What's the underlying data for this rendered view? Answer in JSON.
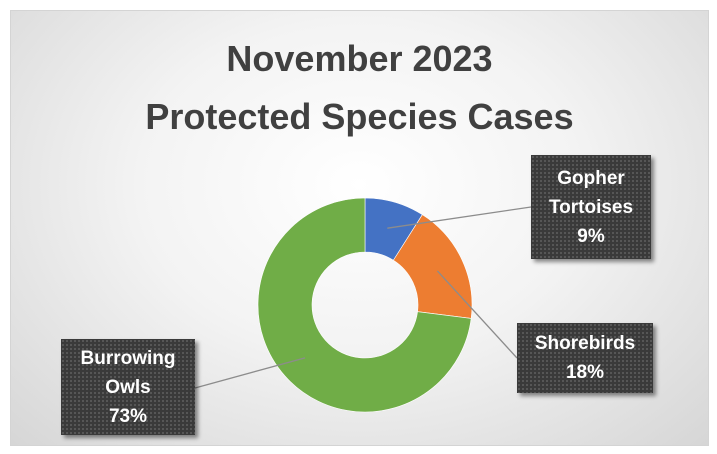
{
  "chart_data": {
    "type": "pie",
    "title": "November 2023",
    "subtitle": "Protected Species Cases",
    "hole": true,
    "slices": [
      {
        "name_lines": [
          "Gopher",
          "Tortoises"
        ],
        "pct_label": "9%",
        "value": 9,
        "color": "#4472c4"
      },
      {
        "name_lines": [
          "Shorebirds"
        ],
        "pct_label": "18%",
        "value": 18,
        "color": "#ed7d31"
      },
      {
        "name_lines": [
          "Burrowing",
          "Owls"
        ],
        "pct_label": "73%",
        "value": 73,
        "color": "#70ad47"
      }
    ]
  }
}
